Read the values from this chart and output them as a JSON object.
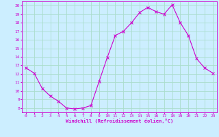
{
  "hours": [
    0,
    1,
    2,
    3,
    4,
    5,
    6,
    7,
    8,
    9,
    10,
    11,
    12,
    13,
    14,
    15,
    16,
    17,
    18,
    19,
    20,
    21,
    22,
    23
  ],
  "values": [
    12.7,
    12.1,
    10.3,
    9.4,
    8.8,
    8.0,
    7.9,
    8.0,
    8.3,
    11.1,
    13.9,
    16.5,
    17.0,
    18.0,
    19.2,
    19.8,
    19.3,
    19.0,
    20.1,
    18.0,
    16.5,
    13.8,
    12.7,
    12.1
  ],
  "ylabel_values": [
    8,
    9,
    10,
    11,
    12,
    13,
    14,
    15,
    16,
    17,
    18,
    19,
    20
  ],
  "ylim": [
    7.5,
    20.5
  ],
  "xlim": [
    -0.5,
    23.5
  ],
  "bg_color": "#cceeff",
  "grid_color": "#aaddcc",
  "line_color": "#cc00cc",
  "marker_color": "#cc00cc",
  "xlabel": "Windchill (Refroidissement éolien,°C)",
  "xlabel_color": "#cc00cc",
  "tick_color": "#cc00cc",
  "title": ""
}
